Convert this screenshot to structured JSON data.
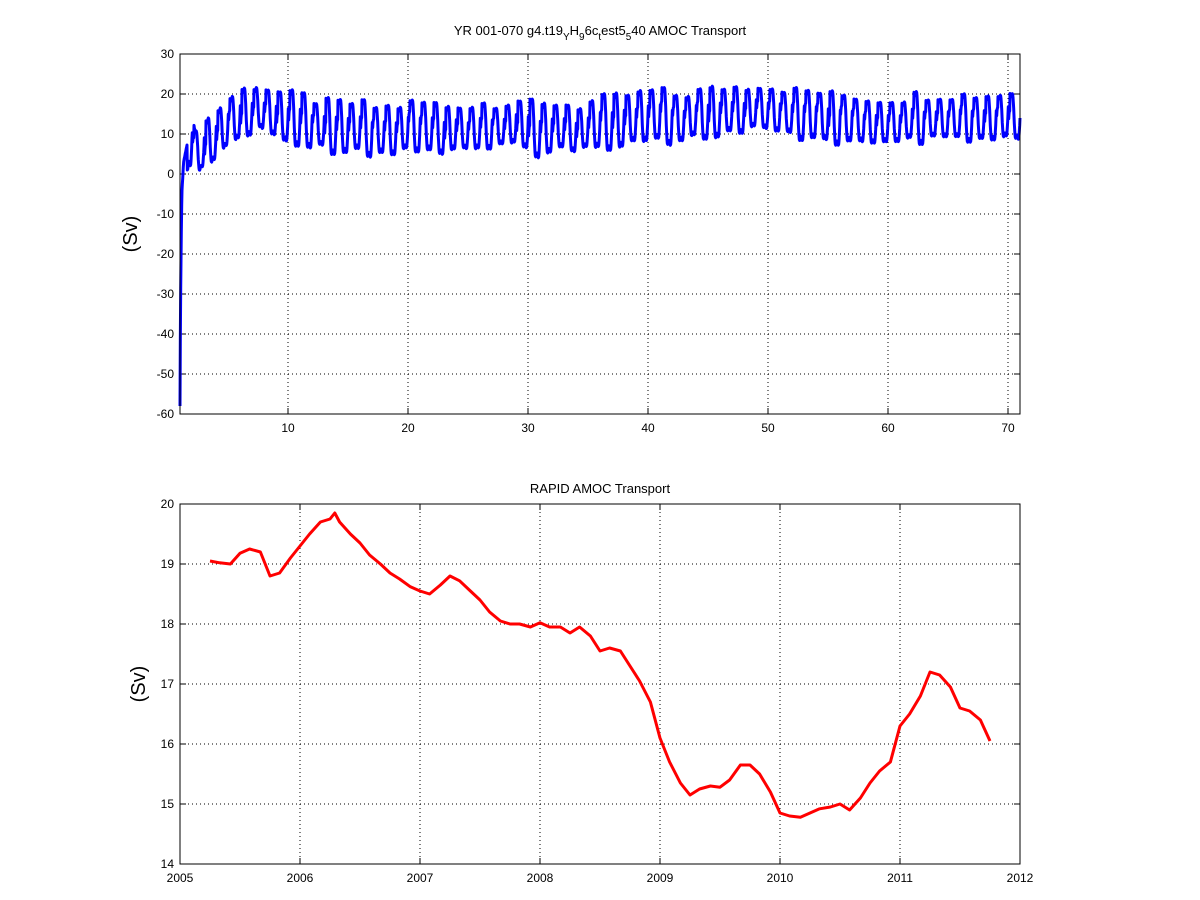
{
  "chart_data": [
    {
      "type": "line",
      "title": "YR 001-070 g4.t19_YH_96c_test5_540 AMOC Transport",
      "title_parts": [
        {
          "text": "YR 001-070 g4.t19",
          "sub": false
        },
        {
          "text": "Y",
          "sub": true
        },
        {
          "text": "H",
          "sub": false
        },
        {
          "text": "9",
          "sub": true
        },
        {
          "text": "6c",
          "sub": false
        },
        {
          "text": "t",
          "sub": true
        },
        {
          "text": "est5",
          "sub": false
        },
        {
          "text": "5",
          "sub": true
        },
        {
          "text": "40 AMOC Transport",
          "sub": false
        }
      ],
      "ylabel": "(Sv)",
      "xlim": [
        1,
        71
      ],
      "ylim": [
        -60,
        30
      ],
      "xticks": [
        10,
        20,
        30,
        40,
        50,
        60,
        70
      ],
      "yticks": [
        -60,
        -50,
        -40,
        -30,
        -20,
        -10,
        0,
        10,
        20,
        30
      ],
      "grid": true,
      "series": [
        {
          "color": "#0000ff",
          "seasonal_cycle": "annual, amplitude ~ 5-8 Sv",
          "x": [
            1.0,
            1.05,
            1.15,
            1.3,
            1.5,
            1.7,
            2,
            2.5,
            3,
            4,
            5,
            6,
            7,
            7.5,
            8,
            9,
            10,
            11,
            12,
            13,
            14,
            15,
            16,
            17,
            18,
            19,
            20,
            21,
            22,
            23,
            24,
            25,
            26,
            27,
            28,
            29,
            30,
            31,
            32,
            33,
            34,
            35,
            36,
            37,
            38,
            39,
            40,
            41,
            42,
            43,
            44,
            45,
            46,
            47,
            48,
            49,
            50,
            51,
            52,
            53,
            54,
            55,
            56,
            57,
            58,
            59,
            60,
            61,
            62,
            63,
            64,
            65,
            66,
            67,
            68,
            69,
            70,
            71
          ],
          "y": [
            -58,
            -30,
            -5,
            3,
            6,
            9,
            9,
            5,
            7,
            10,
            13,
            15,
            16,
            17,
            16,
            15,
            14,
            14,
            13,
            12,
            12,
            12,
            12,
            11,
            11,
            11,
            12,
            12,
            12,
            11,
            12,
            11,
            12,
            12,
            12,
            13,
            12,
            11,
            12,
            12,
            11,
            12,
            13,
            13,
            14,
            14,
            15,
            15,
            14,
            14,
            15,
            15,
            16,
            16,
            16,
            17,
            16,
            16,
            15,
            15,
            15,
            14,
            14,
            14,
            13,
            13,
            13,
            13,
            14,
            14,
            14,
            14,
            14,
            14,
            14,
            14,
            15,
            14
          ]
        }
      ]
    },
    {
      "type": "line",
      "title": "RAPID AMOC Transport",
      "ylabel": "(Sv)",
      "xlim": [
        2005,
        2012
      ],
      "ylim": [
        14,
        20
      ],
      "xticks": [
        2005,
        2006,
        2007,
        2008,
        2009,
        2010,
        2011,
        2012
      ],
      "yticks": [
        14,
        15,
        16,
        17,
        18,
        19,
        20
      ],
      "grid": true,
      "series": [
        {
          "color": "#ff0000",
          "x": [
            2005.25,
            2005.33,
            2005.42,
            2005.5,
            2005.58,
            2005.67,
            2005.75,
            2005.83,
            2005.92,
            2006.0,
            2006.08,
            2006.17,
            2006.25,
            2006.29,
            2006.33,
            2006.42,
            2006.5,
            2006.58,
            2006.67,
            2006.75,
            2006.83,
            2006.92,
            2007.0,
            2007.08,
            2007.17,
            2007.25,
            2007.33,
            2007.42,
            2007.5,
            2007.58,
            2007.67,
            2007.75,
            2007.83,
            2007.92,
            2008.0,
            2008.08,
            2008.17,
            2008.25,
            2008.33,
            2008.42,
            2008.5,
            2008.58,
            2008.67,
            2008.75,
            2008.83,
            2008.92,
            2009.0,
            2009.08,
            2009.17,
            2009.25,
            2009.33,
            2009.42,
            2009.5,
            2009.58,
            2009.67,
            2009.75,
            2009.83,
            2009.92,
            2010.0,
            2010.08,
            2010.17,
            2010.25,
            2010.33,
            2010.42,
            2010.5,
            2010.58,
            2010.67,
            2010.75,
            2010.83,
            2010.92,
            2011.0,
            2011.08,
            2011.17,
            2011.25,
            2011.33,
            2011.42,
            2011.5,
            2011.58,
            2011.67,
            2011.75
          ],
          "y": [
            19.05,
            19.02,
            19.0,
            19.18,
            19.25,
            19.2,
            18.8,
            18.85,
            19.1,
            19.3,
            19.5,
            19.7,
            19.75,
            19.85,
            19.7,
            19.5,
            19.35,
            19.15,
            19.0,
            18.85,
            18.75,
            18.62,
            18.55,
            18.5,
            18.65,
            18.8,
            18.72,
            18.55,
            18.4,
            18.2,
            18.05,
            18.0,
            18.0,
            17.95,
            18.02,
            17.95,
            17.95,
            17.85,
            17.95,
            17.8,
            17.55,
            17.6,
            17.55,
            17.3,
            17.05,
            16.7,
            16.1,
            15.7,
            15.35,
            15.15,
            15.25,
            15.3,
            15.28,
            15.4,
            15.65,
            15.65,
            15.5,
            15.2,
            14.85,
            14.8,
            14.78,
            14.85,
            14.92,
            14.95,
            15.0,
            14.9,
            15.1,
            15.35,
            15.55,
            15.7,
            16.3,
            16.5,
            16.8,
            17.2,
            17.15,
            16.95,
            16.6,
            16.55,
            16.4,
            16.05
          ]
        }
      ]
    }
  ]
}
